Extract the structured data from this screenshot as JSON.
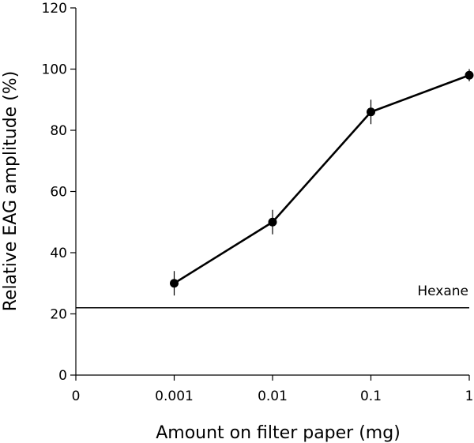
{
  "chart_data": {
    "type": "line",
    "title": "",
    "xlabel": "Amount on filter paper (mg)",
    "ylabel": "Relative EAG amplitude (%)",
    "x_categories": [
      "0",
      "0.001",
      "0.01",
      "0.1",
      "1"
    ],
    "ylim": [
      0,
      120
    ],
    "yticks": [
      "0",
      "20",
      "40",
      "60",
      "80",
      "100",
      "120"
    ],
    "grid": false,
    "series": [
      {
        "x": [
          "0.001",
          "0.01",
          "0.1",
          "1"
        ],
        "y": [
          30,
          50,
          86,
          98
        ],
        "error": [
          4,
          4,
          4,
          2
        ],
        "color": "#000000"
      }
    ],
    "reference_line": {
      "label": "Hexane",
      "y": 22
    }
  }
}
